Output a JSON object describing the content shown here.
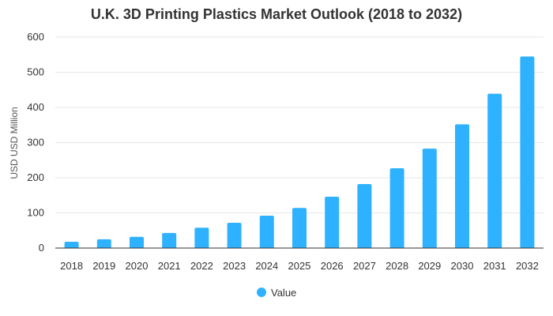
{
  "chart_data": {
    "type": "bar",
    "title": "U.K. 3D Printing Plastics Market Outlook (2018 to 2032)",
    "ylabel": "USD USD Million",
    "xlabel": "",
    "categories": [
      "2018",
      "2019",
      "2020",
      "2021",
      "2022",
      "2023",
      "2024",
      "2025",
      "2026",
      "2027",
      "2028",
      "2029",
      "2030",
      "2031",
      "2032"
    ],
    "series": [
      {
        "name": "Value",
        "color": "#2eb2ff",
        "values": [
          18,
          25,
          32,
          43,
          58,
          72,
          92,
          114,
          146,
          182,
          227,
          283,
          352,
          439,
          545
        ]
      }
    ],
    "ylim": [
      0,
      600
    ],
    "yticks": [
      0,
      100,
      200,
      300,
      400,
      500,
      600
    ],
    "grid": true,
    "legend_position": "bottom"
  }
}
